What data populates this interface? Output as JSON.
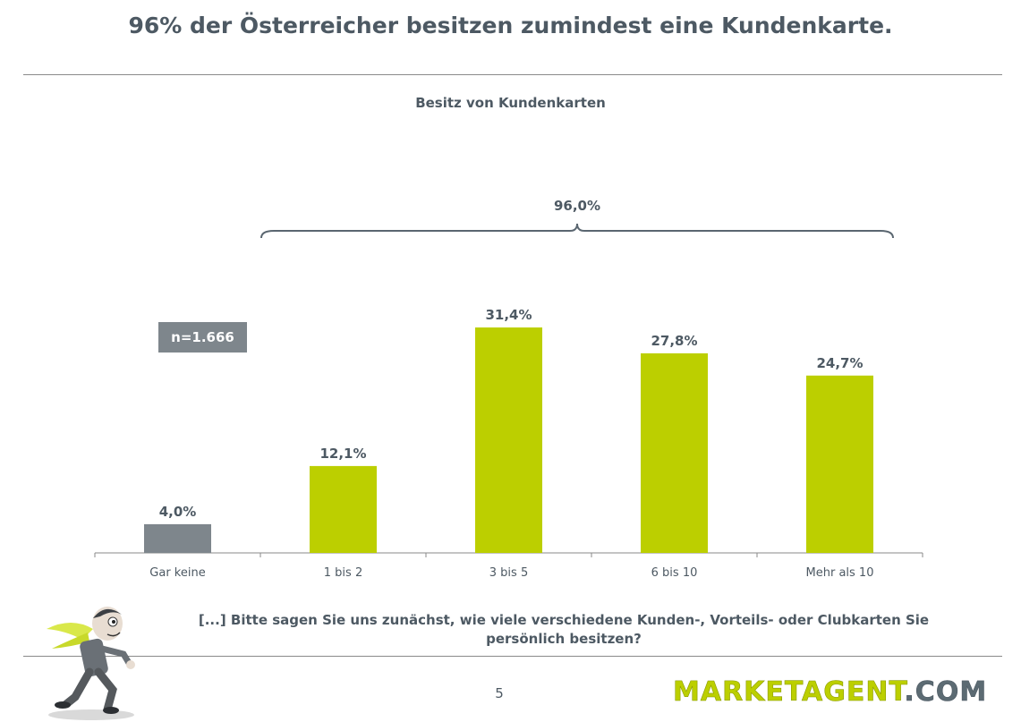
{
  "headline": "96% der Österreicher besitzen zumindest eine Kundenkarte.",
  "sample_size": "n=1.666",
  "question": "[...] Bitte sagen Sie uns zunächst, wie viele verschiedene Kunden-, Vorteils-  oder Clubkarten Sie persönlich besitzen?",
  "page_number": "5",
  "brand": {
    "name": "MARKETAGENT.COM",
    "logo_color": "#bccf00"
  },
  "colors": {
    "bar_none": "#7e868c",
    "bar_owners": "#bccf00",
    "text": "#4d5963"
  },
  "chart_data": {
    "type": "bar",
    "title": "Besitz von Kundenkarten",
    "categories": [
      "Gar keine",
      "1 bis 2",
      "3 bis 5",
      "6 bis 10",
      "Mehr als 10"
    ],
    "values": [
      4.0,
      12.1,
      31.4,
      27.8,
      24.7
    ],
    "value_labels": [
      "4,0%",
      "12,1%",
      "31,4%",
      "27,8%",
      "24,7%"
    ],
    "unit": "%",
    "ylim": [
      0,
      40
    ],
    "grid": false,
    "bracket": {
      "label": "96,0%",
      "from_category": "1 bis 2",
      "to_category": "Mehr als 10",
      "value": 96.0
    }
  }
}
